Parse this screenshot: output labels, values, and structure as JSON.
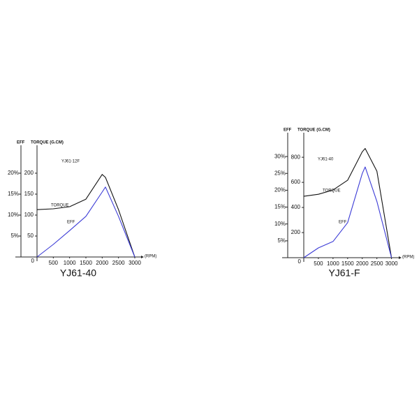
{
  "chart_data": [
    {
      "type": "line",
      "title": "YJ61-40",
      "annotation": "YJ61-12F",
      "x_label": "(RPM)",
      "y_label": "TORQUE (G.CM)",
      "y2_label": "EFF",
      "x": [
        0,
        500,
        1000,
        1500,
        2000,
        2100,
        2500,
        3000
      ],
      "series": [
        {
          "name": "TORQUE",
          "color": "#111111",
          "values": [
            113,
            115,
            120,
            138,
            197,
            190,
            113,
            0
          ]
        },
        {
          "name": "EFF",
          "color": "#3b3bd6",
          "axis": "y2",
          "values": [
            0,
            3,
            6.3,
            9.7,
            15.5,
            16.7,
            9.7,
            0
          ]
        }
      ],
      "xlim": [
        0,
        3150
      ],
      "xticks": [
        500,
        1000,
        1500,
        2000,
        2500,
        3000
      ],
      "ylim": [
        0,
        250
      ],
      "yticks": [
        0,
        50,
        100,
        150,
        200
      ],
      "y2lim": [
        0,
        25
      ],
      "y2ticks": [
        {
          "value": 5,
          "label": "5%"
        },
        {
          "value": 10,
          "label": "10%"
        },
        {
          "value": 15,
          "label": "15%"
        },
        {
          "value": 20,
          "label": "20%"
        }
      ]
    },
    {
      "type": "line",
      "title": "YJ61-F",
      "annotation": "YJ61-40",
      "x_label": "(RPM)",
      "y_label": "TORQUE (G.CM)",
      "y2_label": "EFF",
      "x": [
        0,
        500,
        1000,
        1500,
        2000,
        2100,
        2500,
        3000
      ],
      "series": [
        {
          "name": "TORQUE",
          "color": "#111111",
          "values": [
            489,
            505,
            539,
            617,
            844,
            870,
            689,
            0
          ]
        },
        {
          "name": "EFF",
          "color": "#3b3bd6",
          "axis": "y2",
          "values": [
            0,
            2.9,
            4.8,
            10.4,
            25,
            26.9,
            16.7,
            0
          ]
        }
      ],
      "xlim": [
        0,
        3200
      ],
      "xticks": [
        500,
        1000,
        1500,
        2000,
        2500,
        3000
      ],
      "ylim": [
        0,
        940
      ],
      "yticks": [
        0,
        200,
        400,
        600,
        800
      ],
      "y2lim": [
        0,
        35
      ],
      "y2ticks": [
        {
          "value": 5,
          "label": "5%"
        },
        {
          "value": 10,
          "label": "10%"
        },
        {
          "value": 15,
          "label": "15%"
        },
        {
          "value": 20,
          "label": "20%"
        },
        {
          "value": 25,
          "label": "25%"
        },
        {
          "value": 30,
          "label": "30%"
        }
      ]
    }
  ]
}
